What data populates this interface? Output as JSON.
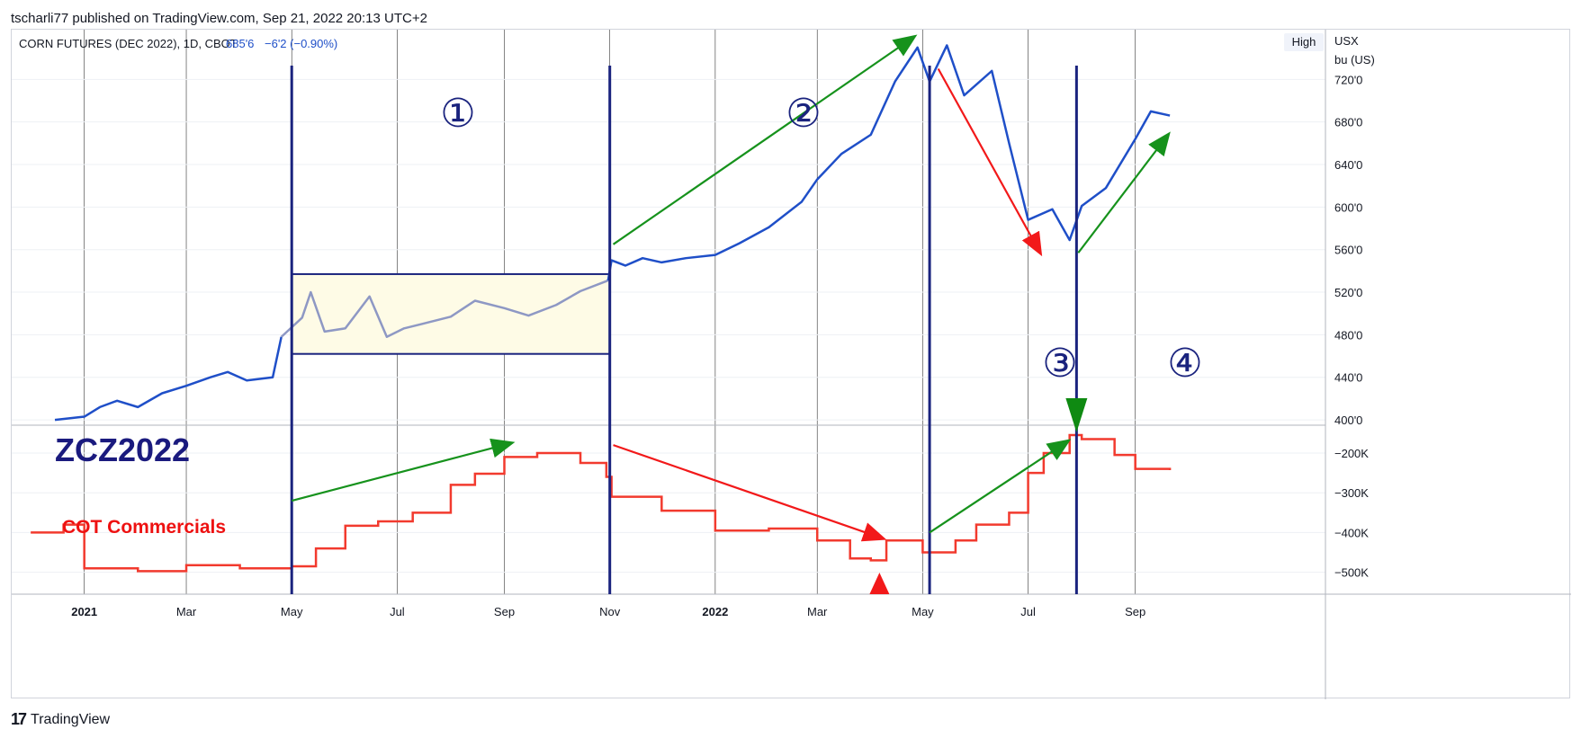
{
  "header": {
    "publisher_line": "tscharli77 published on TradingView.com, Sep 21, 2022 20:13 UTC+2"
  },
  "legend": {
    "symbol": "CORN FUTURES (DEC 2022), 1D, CBOT",
    "last": "685'6",
    "change": "−6'2 (−0.90%)",
    "scale_button": "High",
    "currency": "USX",
    "unit": "bu (US)"
  },
  "annotations": {
    "ticker": "ZCZ2022",
    "cot_label": "COT Commercials",
    "phases": [
      "①",
      "②",
      "③",
      "④"
    ]
  },
  "footer": {
    "brand": "TradingView"
  },
  "colors": {
    "price_line": "#1f4fc8",
    "price_faded": "#8e98c4",
    "cot_line": "#f23a2e",
    "vertical_marker": "#1a237e",
    "box_fill": "#fefbe6",
    "green_arrow": "#16921c",
    "red_arrow": "#f2191a",
    "ticker_text": "#1a1a7e",
    "cot_text": "#ee1111",
    "axis_text": "#131722",
    "grid": "#000000"
  },
  "chart_data": [
    {
      "type": "line",
      "title": "CORN FUTURES (DEC 2022), 1D, CBOT",
      "ylabel": "USX bu (US)",
      "y_ticks": [
        "400'0",
        "440'0",
        "480'0",
        "520'0",
        "560'0",
        "600'0",
        "640'0",
        "680'0",
        "720'0"
      ],
      "ylim": [
        395,
        760
      ],
      "x_ticks": [
        "2021",
        "Mar",
        "May",
        "Jul",
        "Sep",
        "Nov",
        "2022",
        "Mar",
        "May",
        "Jul",
        "Sep"
      ],
      "series": [
        {
          "values": [
            [
              "2020-12-15",
              400
            ],
            [
              "2021-01-01",
              403
            ],
            [
              "2021-01-10",
              412
            ],
            [
              "2021-01-20",
              418
            ],
            [
              "2021-02-01",
              412
            ],
            [
              "2021-02-15",
              425
            ],
            [
              "2021-03-01",
              432
            ],
            [
              "2021-03-15",
              440
            ],
            [
              "2021-03-25",
              445
            ],
            [
              "2021-04-05",
              437
            ],
            [
              "2021-04-20",
              440
            ],
            [
              "2021-04-25",
              478
            ],
            [
              "2021-05-07",
              496
            ],
            [
              "2021-05-12",
              520
            ],
            [
              "2021-05-20",
              483
            ],
            [
              "2021-06-01",
              486
            ],
            [
              "2021-06-15",
              516
            ],
            [
              "2021-06-25",
              478
            ],
            [
              "2021-07-05",
              486
            ],
            [
              "2021-07-15",
              490
            ],
            [
              "2021-08-01",
              497
            ],
            [
              "2021-08-15",
              512
            ],
            [
              "2021-09-01",
              505
            ],
            [
              "2021-09-15",
              498
            ],
            [
              "2021-10-01",
              508
            ],
            [
              "2021-10-15",
              521
            ],
            [
              "2021-10-31",
              531
            ],
            [
              "2021-11-02",
              550
            ],
            [
              "2021-11-10",
              545
            ],
            [
              "2021-11-20",
              552
            ],
            [
              "2021-12-01",
              548
            ],
            [
              "2021-12-15",
              552
            ],
            [
              "2022-01-01",
              555
            ],
            [
              "2022-01-15",
              566
            ],
            [
              "2022-02-01",
              581
            ],
            [
              "2022-02-20",
              605
            ],
            [
              "2022-03-01",
              626
            ],
            [
              "2022-03-15",
              650
            ],
            [
              "2022-04-01",
              668
            ],
            [
              "2022-04-15",
              718
            ],
            [
              "2022-04-28",
              750
            ],
            [
              "2022-05-05",
              718
            ],
            [
              "2022-05-15",
              752
            ],
            [
              "2022-05-25",
              705
            ],
            [
              "2022-06-10",
              728
            ],
            [
              "2022-06-20",
              660
            ],
            [
              "2022-07-01",
              588
            ],
            [
              "2022-07-15",
              598
            ],
            [
              "2022-07-25",
              569
            ],
            [
              "2022-08-01",
              601
            ],
            [
              "2022-08-15",
              618
            ],
            [
              "2022-09-01",
              664
            ],
            [
              "2022-09-10",
              690
            ],
            [
              "2022-09-21",
              686
            ]
          ]
        }
      ],
      "range_box": {
        "x": [
          "2021-05-01",
          "2021-11-01"
        ],
        "y": [
          462,
          537
        ]
      }
    },
    {
      "type": "line",
      "title": "COT Commercials",
      "y_ticks": [
        "−200K",
        "−300K",
        "−400K",
        "−500K"
      ],
      "ylim": [
        -555000,
        -130000
      ],
      "series": [
        {
          "name": "COT Commercials",
          "values": [
            [
              "2020-12-01",
              -400000
            ],
            [
              "2020-12-20",
              -380000
            ],
            [
              "2021-01-01",
              -490000
            ],
            [
              "2021-02-01",
              -497000
            ],
            [
              "2021-03-01",
              -482000
            ],
            [
              "2021-04-01",
              -490000
            ],
            [
              "2021-05-01",
              -485000
            ],
            [
              "2021-05-15",
              -440000
            ],
            [
              "2021-06-01",
              -383000
            ],
            [
              "2021-06-20",
              -372000
            ],
            [
              "2021-07-10",
              -350000
            ],
            [
              "2021-08-01",
              -280000
            ],
            [
              "2021-08-15",
              -252000
            ],
            [
              "2021-09-01",
              -210000
            ],
            [
              "2021-09-20",
              -200000
            ],
            [
              "2021-10-15",
              -225000
            ],
            [
              "2021-10-30",
              -260000
            ],
            [
              "2021-11-02",
              -310000
            ],
            [
              "2021-12-01",
              -345000
            ],
            [
              "2022-01-01",
              -395000
            ],
            [
              "2022-02-01",
              -390000
            ],
            [
              "2022-03-01",
              -420000
            ],
            [
              "2022-03-20",
              -465000
            ],
            [
              "2022-04-01",
              -470000
            ],
            [
              "2022-04-10",
              -420000
            ],
            [
              "2022-05-01",
              -450000
            ],
            [
              "2022-05-20",
              -420000
            ],
            [
              "2022-06-01",
              -380000
            ],
            [
              "2022-06-20",
              -350000
            ],
            [
              "2022-07-01",
              -250000
            ],
            [
              "2022-07-10",
              -200000
            ],
            [
              "2022-07-25",
              -155000
            ],
            [
              "2022-08-01",
              -165000
            ],
            [
              "2022-08-20",
              -205000
            ],
            [
              "2022-09-01",
              -240000
            ],
            [
              "2022-09-21",
              -243000
            ]
          ]
        }
      ]
    }
  ]
}
